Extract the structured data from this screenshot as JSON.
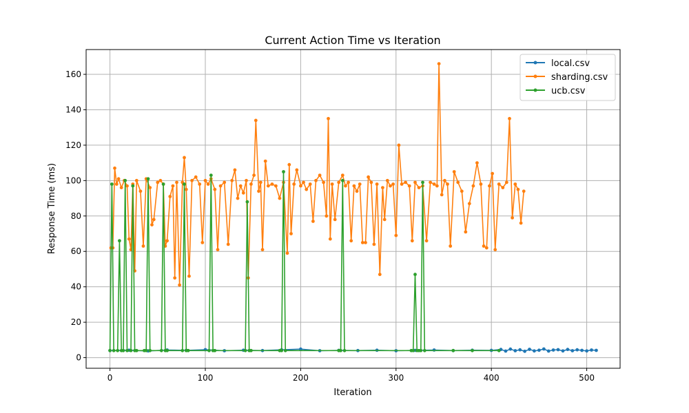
{
  "chart_data": {
    "type": "line",
    "title": "Current Action Time vs Iteration",
    "xlabel": "Iteration",
    "ylabel": "Response Time (ms)",
    "xlim": [
      -25,
      535
    ],
    "ylim": [
      -6,
      174
    ],
    "xticks": [
      0,
      100,
      200,
      300,
      400,
      500
    ],
    "yticks": [
      0,
      20,
      40,
      60,
      80,
      100,
      120,
      140,
      160
    ],
    "grid": true,
    "legend_position": "top-right",
    "colors": {
      "local": "#1f77b4",
      "sharding": "#ff7f0e",
      "ucb": "#2ca02c"
    },
    "series": [
      {
        "name": "local.csv",
        "color": "#1f77b4",
        "x": [
          0,
          20,
          40,
          60,
          80,
          100,
          120,
          140,
          160,
          180,
          200,
          220,
          240,
          260,
          280,
          300,
          320,
          340,
          360,
          380,
          400,
          410,
          415,
          420,
          425,
          430,
          435,
          440,
          445,
          450,
          455,
          460,
          465,
          470,
          475,
          480,
          485,
          490,
          495,
          500,
          505,
          510
        ],
        "y": [
          4,
          4.2,
          3.8,
          4.3,
          4.1,
          4.5,
          3.9,
          4.2,
          4,
          4.4,
          4.8,
          3.9,
          4.1,
          4,
          4.2,
          3.9,
          4.1,
          4.3,
          4,
          4.2,
          4.1,
          4.6,
          3.7,
          4.8,
          3.9,
          4.4,
          3.6,
          4.7,
          3.8,
          4.2,
          4.9,
          3.7,
          4.3,
          4.5,
          3.8,
          4.6,
          3.9,
          4.4,
          4.1,
          3.8,
          4.3,
          4.1
        ]
      },
      {
        "name": "sharding.csv",
        "color": "#ff7f0e",
        "x": [
          1,
          3,
          5,
          7,
          9,
          12,
          15,
          18,
          20,
          22,
          24,
          26,
          28,
          32,
          35,
          38,
          42,
          44,
          46,
          50,
          53,
          56,
          58,
          60,
          63,
          66,
          68,
          70,
          73,
          76,
          78,
          80,
          83,
          86,
          90,
          94,
          97,
          100,
          103,
          106,
          110,
          113,
          116,
          120,
          124,
          128,
          131,
          134,
          137,
          140,
          143,
          145,
          148,
          151,
          153,
          156,
          158,
          160,
          163,
          166,
          170,
          174,
          178,
          182,
          186,
          188,
          190,
          193,
          196,
          200,
          203,
          206,
          210,
          213,
          216,
          220,
          224,
          227,
          229,
          231,
          233,
          236,
          240,
          244,
          247,
          250,
          253,
          256,
          259,
          262,
          265,
          268,
          271,
          274,
          277,
          280,
          283,
          286,
          288,
          291,
          294,
          297,
          300,
          303,
          306,
          310,
          314,
          317,
          320,
          324,
          328,
          332,
          336,
          340,
          343,
          345,
          348,
          351,
          354,
          357,
          361,
          365,
          369,
          373,
          377,
          381,
          385,
          389,
          392,
          395,
          398,
          401,
          404,
          408,
          412,
          416,
          419,
          422,
          425,
          428,
          431,
          434
        ],
        "y": [
          62,
          62,
          107,
          98,
          101,
          96,
          100,
          97,
          67,
          61,
          98,
          49,
          100,
          94,
          63,
          101,
          96,
          75,
          78,
          99,
          100,
          98,
          63,
          66,
          91,
          97,
          45,
          99,
          41,
          99,
          113,
          95,
          46,
          100,
          102,
          98,
          65,
          100,
          98,
          101,
          95,
          61,
          97,
          99,
          64,
          100,
          106,
          90,
          97,
          93,
          100,
          45,
          98,
          103,
          134,
          94,
          99,
          61,
          111,
          97,
          98,
          97,
          90,
          99,
          59,
          109,
          70,
          98,
          106,
          97,
          99,
          95,
          98,
          77,
          100,
          103,
          99,
          80,
          135,
          67,
          98,
          78,
          99,
          103,
          97,
          99,
          66,
          97,
          94,
          98,
          65,
          65,
          102,
          99,
          64,
          98,
          47,
          96,
          78,
          100,
          97,
          98,
          69,
          120,
          98,
          99,
          97,
          66,
          99,
          96,
          97,
          66,
          99,
          98,
          97,
          166,
          92,
          100,
          98,
          63,
          105,
          99,
          94,
          71,
          87,
          97,
          110,
          98,
          63,
          62,
          97,
          104,
          61,
          98,
          96,
          99,
          135,
          79,
          98,
          95,
          76,
          94
        ]
      },
      {
        "name": "ucb.csv",
        "color": "#2ca02c",
        "x": [
          0,
          2,
          4,
          8,
          10,
          12,
          14,
          16,
          18,
          22,
          24,
          26,
          28,
          36,
          38,
          40,
          42,
          54,
          56,
          58,
          60,
          76,
          78,
          80,
          82,
          104,
          106,
          108,
          110,
          142,
          144,
          146,
          148,
          178,
          180,
          182,
          184,
          240,
          242,
          244,
          246,
          316,
          318,
          320,
          322,
          324,
          326,
          328,
          330,
          360,
          380,
          408
        ],
        "y": [
          4,
          98,
          4,
          4,
          66,
          4,
          4,
          100,
          4,
          4,
          97,
          4,
          4,
          4,
          4,
          101,
          4,
          4,
          98,
          4,
          4,
          4,
          98,
          4,
          4,
          4,
          103,
          4,
          4,
          4,
          88,
          4,
          4,
          4,
          4,
          105,
          4,
          4,
          4,
          100,
          4,
          4,
          4,
          47,
          4,
          4,
          4,
          99,
          4,
          4,
          4,
          4
        ]
      }
    ]
  }
}
